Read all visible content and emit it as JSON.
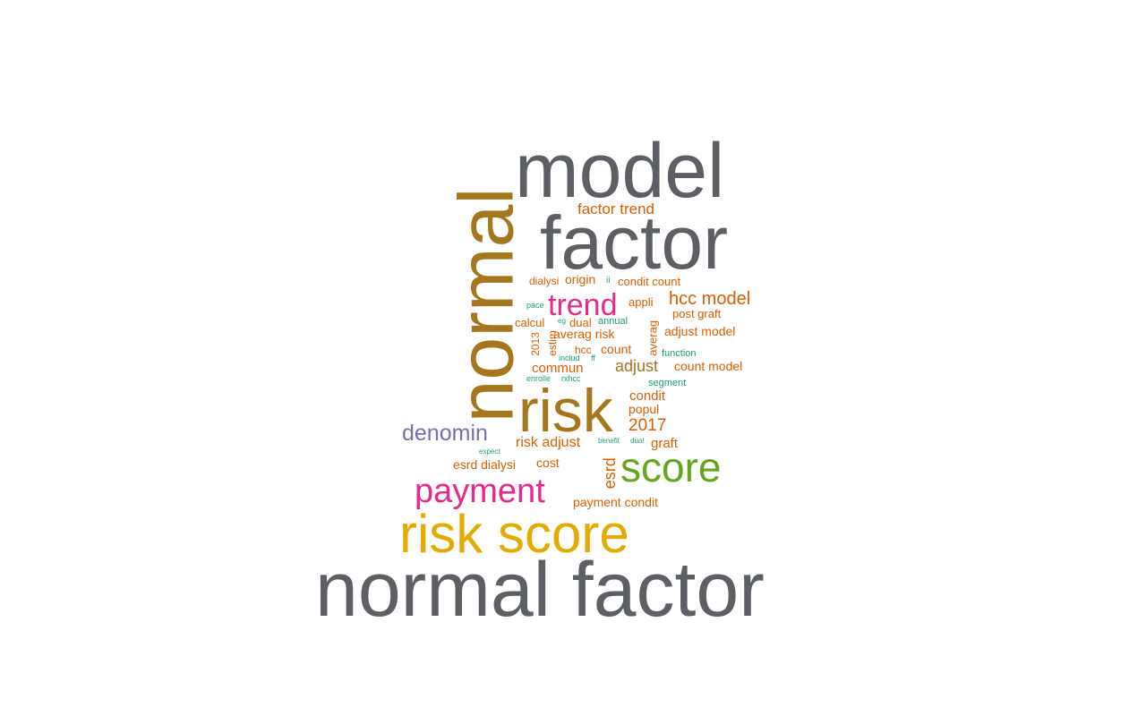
{
  "palette": {
    "gray": "#5c5f63",
    "brown": "#a6761d",
    "orange": "#d95f02",
    "pink": "#e7298a",
    "teal": "#1b9e77",
    "purple": "#7570b3",
    "green": "#66a61e",
    "gold": "#e6ab02"
  },
  "words": [
    {
      "text": "model",
      "color": "gray"
    },
    {
      "text": "factor",
      "color": "gray"
    },
    {
      "text": "normal factor",
      "color": "gray"
    },
    {
      "text": "normal",
      "color": "brown"
    },
    {
      "text": "risk",
      "color": "brown"
    },
    {
      "text": "risk score",
      "color": "gold"
    },
    {
      "text": "score",
      "color": "green"
    },
    {
      "text": "payment",
      "color": "pink"
    },
    {
      "text": "trend",
      "color": "pink"
    },
    {
      "text": "denomin",
      "color": "purple"
    },
    {
      "text": "factor trend",
      "color": "orange"
    },
    {
      "text": "hcc model",
      "color": "orange"
    },
    {
      "text": "condit count",
      "color": "orange"
    },
    {
      "text": "origin",
      "color": "orange"
    },
    {
      "text": "dialysi",
      "color": "orange"
    },
    {
      "text": "ii",
      "color": "teal"
    },
    {
      "text": "appli",
      "color": "orange"
    },
    {
      "text": "post graft",
      "color": "orange"
    },
    {
      "text": "pace",
      "color": "teal"
    },
    {
      "text": "calcul",
      "color": "orange"
    },
    {
      "text": "eg",
      "color": "teal"
    },
    {
      "text": "dual",
      "color": "orange"
    },
    {
      "text": "annual",
      "color": "teal"
    },
    {
      "text": "averag",
      "color": "orange"
    },
    {
      "text": "adjust model",
      "color": "orange"
    },
    {
      "text": "2013",
      "color": "orange"
    },
    {
      "text": "estim",
      "color": "orange"
    },
    {
      "text": "averag risk",
      "color": "orange"
    },
    {
      "text": "hcc",
      "color": "orange"
    },
    {
      "text": "count",
      "color": "orange"
    },
    {
      "text": "function",
      "color": "teal"
    },
    {
      "text": "includ",
      "color": "teal"
    },
    {
      "text": "ff",
      "color": "teal"
    },
    {
      "text": "commun",
      "color": "orange"
    },
    {
      "text": "adjust",
      "color": "brown"
    },
    {
      "text": "count model",
      "color": "orange"
    },
    {
      "text": "enrolle",
      "color": "teal"
    },
    {
      "text": "rxhcc",
      "color": "teal"
    },
    {
      "text": "segment",
      "color": "teal"
    },
    {
      "text": "condit",
      "color": "orange"
    },
    {
      "text": "popul",
      "color": "orange"
    },
    {
      "text": "2017",
      "color": "orange"
    },
    {
      "text": "risk adjust",
      "color": "orange"
    },
    {
      "text": "benefit",
      "color": "teal"
    },
    {
      "text": "dual",
      "color": "teal"
    },
    {
      "text": "graft",
      "color": "orange"
    },
    {
      "text": "expect",
      "color": "teal"
    },
    {
      "text": "esrd",
      "color": "orange"
    },
    {
      "text": "esrd dialysi",
      "color": "orange"
    },
    {
      "text": "cost",
      "color": "orange"
    },
    {
      "text": "payment condit",
      "color": "orange"
    }
  ]
}
